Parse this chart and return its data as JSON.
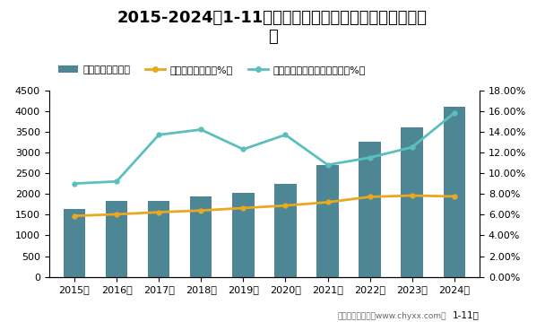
{
  "title_line1": "2015-2024年1-11月内蒙古自治区工业企业应收账款统计",
  "title_line2": "图",
  "years": [
    "2015年",
    "2016年",
    "2017年",
    "2018年",
    "2019年",
    "2020年",
    "2021年",
    "2022年",
    "2023年",
    "2024年"
  ],
  "bar_values": [
    1640,
    1830,
    1830,
    1950,
    2030,
    2250,
    2700,
    3250,
    3600,
    4100
  ],
  "line1_values": [
    5.88,
    6.04,
    6.24,
    6.4,
    6.64,
    6.88,
    7.2,
    7.72,
    7.84,
    7.76
  ],
  "line2_values": [
    9.0,
    9.2,
    13.7,
    14.2,
    12.3,
    13.7,
    10.8,
    11.5,
    12.5,
    15.8
  ],
  "bar_color": "#4d8796",
  "line1_color": "#e8a820",
  "line2_color": "#5bbfbf",
  "ylim_left": [
    0,
    4500
  ],
  "ylim_right": [
    0,
    18
  ],
  "yticks_left": [
    0,
    500,
    1000,
    1500,
    2000,
    2500,
    3000,
    3500,
    4000,
    4500
  ],
  "yticks_right": [
    0,
    2,
    4,
    6,
    8,
    10,
    12,
    14,
    16,
    18
  ],
  "legend_labels": [
    "应收账款（亿元）",
    "应收账款百分比（%）",
    "应收账款占营业收入的比重（%）"
  ],
  "background_color": "#ffffff",
  "title_fontsize": 13,
  "tick_fontsize": 8,
  "legend_fontsize": 8,
  "xlabel_note": "1-11月",
  "note_text": "制图：智研咨询（www.chyxx.com）"
}
